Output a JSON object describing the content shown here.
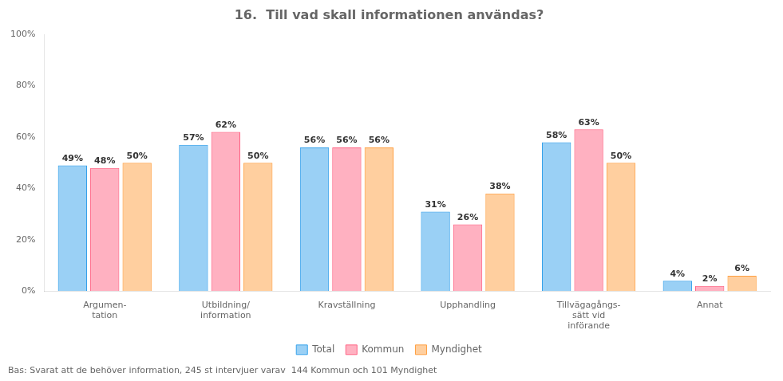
{
  "chart_data": {
    "type": "bar",
    "title": "16.  Till vad skall informationen användas?",
    "categories": [
      "Argumen-\ntation",
      "Utbildning/\ninformation",
      "Kravställning",
      "Upphandling",
      "Tillvägagångs-\nsätt vid\ninförande",
      "Annat"
    ],
    "series": [
      {
        "name": "Total",
        "values": [
          49,
          57,
          56,
          31,
          58,
          4
        ],
        "value_labels": [
          "49%",
          "57%",
          "56%",
          "31%",
          "58%",
          "4%"
        ]
      },
      {
        "name": "Kommun",
        "values": [
          48,
          62,
          56,
          26,
          63,
          2
        ],
        "value_labels": [
          "48%",
          "62%",
          "56%",
          "26%",
          "63%",
          "2%"
        ]
      },
      {
        "name": "Myndighet",
        "values": [
          50,
          50,
          56,
          38,
          50,
          6
        ],
        "value_labels": [
          "50%",
          "50%",
          "56%",
          "38%",
          "50%",
          "6%"
        ]
      }
    ],
    "ylim": [
      0,
      100
    ],
    "yticks": [
      {
        "value": 0,
        "label": "0%"
      },
      {
        "value": 20,
        "label": "20%"
      },
      {
        "value": 40,
        "label": "40%"
      },
      {
        "value": 60,
        "label": "60%"
      },
      {
        "value": 80,
        "label": "80%"
      },
      {
        "value": 100,
        "label": "100%"
      }
    ],
    "grid": false,
    "legend": "bottom",
    "data_labels": true,
    "footnote": "Bas: Svarat att de behöver information, 245 st intervjuer varav  144 Kommun och 101 Myndighet"
  }
}
